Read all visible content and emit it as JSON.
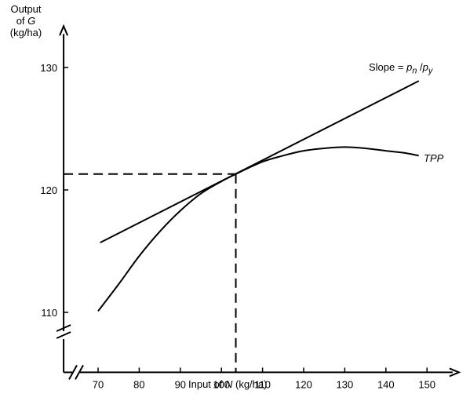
{
  "chart_data": {
    "type": "line",
    "title": "",
    "ylabel_lines": [
      "Output",
      "of G",
      "(kg/ha)"
    ],
    "xlabel": "Input of N (kg/ha)",
    "xlim": [
      62,
      157
    ],
    "ylim": [
      106,
      133
    ],
    "x_ticks": [
      70,
      80,
      90,
      100,
      110,
      120,
      130,
      140,
      150
    ],
    "y_ticks": [
      110,
      120,
      130
    ],
    "axis_breaks": [
      "x",
      "y"
    ],
    "series": [
      {
        "name": "TPP",
        "x": [
          70,
          75,
          80,
          85,
          90,
          95,
          100,
          103.5,
          110,
          115,
          120,
          125,
          130,
          135,
          140,
          145,
          148
        ],
        "y": [
          110.1,
          112.3,
          114.6,
          116.6,
          118.3,
          119.7,
          120.7,
          121.3,
          122.3,
          122.8,
          123.2,
          123.4,
          123.5,
          123.4,
          123.2,
          123.0,
          122.8
        ]
      },
      {
        "name": "Slope = pn / py",
        "x": [
          70.5,
          148
        ],
        "y": [
          115.7,
          128.9
        ]
      }
    ],
    "reference_point": {
      "x": 103.5,
      "y": 121.3
    },
    "annotations": {
      "slope_label": "Slope = pn / py",
      "tpp_label": "TPP"
    }
  }
}
